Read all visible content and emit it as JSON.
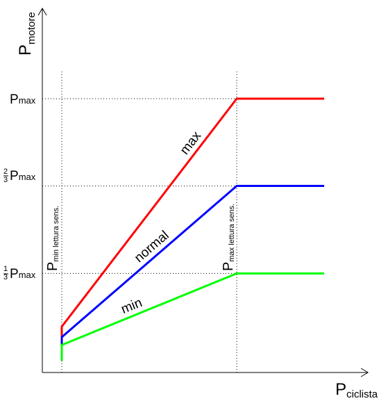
{
  "chart_data": {
    "type": "line",
    "xlabel": {
      "main": "P",
      "sub": "ciclista"
    },
    "ylabel": {
      "main": "P",
      "sub": "motore"
    },
    "x_markers": [
      {
        "main": "P",
        "sub": "min lettura sens."
      },
      {
        "main": "P",
        "sub": "max lettura sens."
      }
    ],
    "y_markers": [
      {
        "prefix": "",
        "frac_num": "",
        "frac_den": "",
        "text": "P",
        "sub": "max"
      },
      {
        "prefix": "",
        "frac_num": "2",
        "frac_den": "3",
        "text": "P",
        "sub": "max"
      },
      {
        "prefix": "",
        "frac_num": "1",
        "frac_den": "3",
        "text": "P",
        "sub": "max"
      }
    ],
    "series": [
      {
        "name": "max",
        "color": "#ff0000",
        "x": [
          0,
          0,
          1,
          1.5
        ],
        "y": [
          0.06,
          0.13,
          1,
          1
        ]
      },
      {
        "name": "normal",
        "color": "#0000ff",
        "x": [
          0,
          0,
          1,
          1.5
        ],
        "y": [
          0.06,
          0.09,
          0.667,
          0.667
        ]
      },
      {
        "name": "min",
        "color": "#00ff00",
        "x": [
          0,
          0,
          1,
          1.5
        ],
        "y": [
          0,
          0.06,
          0.333,
          0.333
        ]
      }
    ],
    "xlim": [
      -0.1,
      1.6
    ],
    "ylim": [
      -0.04,
      1.17
    ],
    "grid": false
  }
}
